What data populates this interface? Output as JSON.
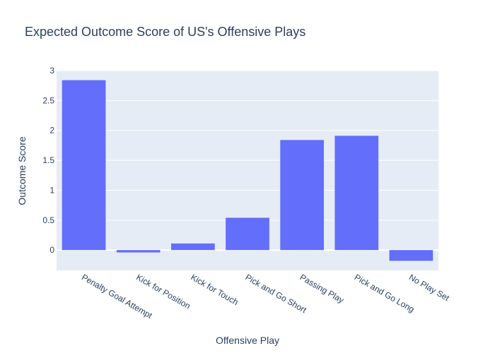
{
  "chart_data": {
    "type": "bar",
    "title": "Expected Outcome Score of US's Offensive Plays",
    "xlabel": "Offensive Play",
    "ylabel": "Outcome Score",
    "categories": [
      "Penalty Goal Attempt",
      "Kick for Position",
      "Kick for Touch",
      "Pick and Go Short",
      "Passing Play",
      "Pick and Go Long",
      "No Play Set"
    ],
    "values": [
      2.84,
      -0.04,
      0.11,
      0.54,
      1.84,
      1.91,
      -0.18
    ],
    "ylim": [
      -0.34,
      3.0
    ],
    "yticks": [
      0,
      0.5,
      1,
      1.5,
      2,
      2.5,
      3
    ],
    "ytick_labels": [
      "0",
      "0.5",
      "1",
      "1.5",
      "2",
      "2.5",
      "3"
    ],
    "grid": true,
    "colors": {
      "bar": "#636efa",
      "plot_bg": "#e5ecf6",
      "grid": "#ffffff",
      "text": "#2a3f5f"
    }
  }
}
